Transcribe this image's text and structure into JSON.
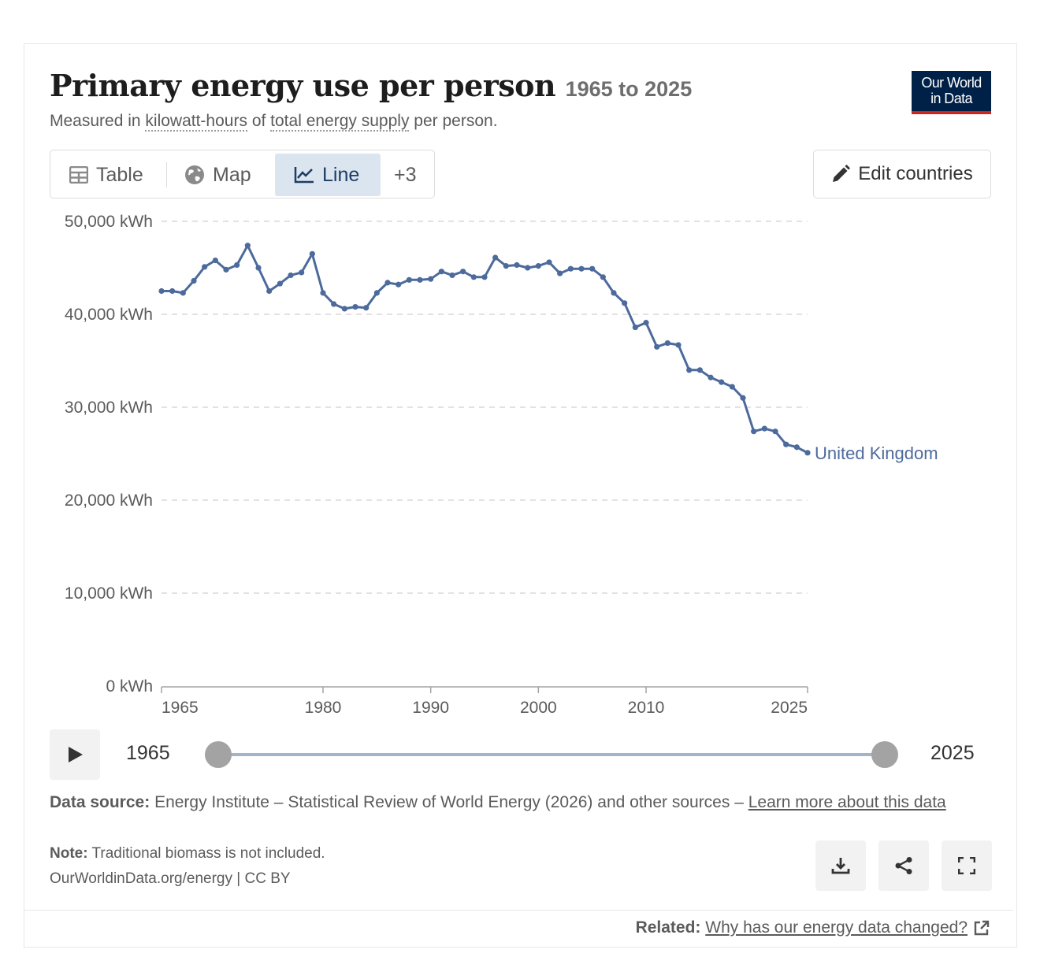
{
  "header": {
    "title": "Primary energy use per person",
    "range": "1965 to 2025",
    "subtitle_prefix": "Measured in",
    "subtitle_unit": "kilowatt-hours",
    "subtitle_of": "of",
    "subtitle_measure": "total energy supply",
    "subtitle_suffix": "per person.",
    "logo_line1": "Our World",
    "logo_line2": "in Data"
  },
  "tabs": [
    {
      "label": "Table",
      "icon": "table-icon"
    },
    {
      "label": "Map",
      "icon": "globe-icon"
    },
    {
      "label": "Line",
      "icon": "line-chart-icon",
      "active": true
    },
    {
      "label": "+3"
    }
  ],
  "edit_button": {
    "label": "Edit countries",
    "icon": "pencil-icon"
  },
  "chart_data": {
    "type": "line",
    "ylim": [
      0,
      50000
    ],
    "xlim": [
      1965,
      2025
    ],
    "y_ticks": [
      0,
      10000,
      20000,
      30000,
      40000,
      50000
    ],
    "y_tick_labels": [
      "0 kWh",
      "10,000 kWh",
      "20,000 kWh",
      "30,000 kWh",
      "40,000 kWh",
      "50,000 kWh"
    ],
    "x_ticks": [
      1965,
      1980,
      1990,
      2000,
      2010,
      2025
    ],
    "x_tick_labels": [
      "1965",
      "1980",
      "1990",
      "2000",
      "2010",
      "2025"
    ],
    "grid": "horizontal-dashed",
    "series": [
      {
        "name": "United Kingdom",
        "color": "#4c6a9c",
        "x": [
          1965,
          1966,
          1967,
          1968,
          1969,
          1970,
          1971,
          1972,
          1973,
          1974,
          1975,
          1976,
          1977,
          1978,
          1979,
          1980,
          1981,
          1982,
          1983,
          1984,
          1985,
          1986,
          1987,
          1988,
          1989,
          1990,
          1991,
          1992,
          1993,
          1994,
          1995,
          1996,
          1997,
          1998,
          1999,
          2000,
          2001,
          2002,
          2003,
          2004,
          2005,
          2006,
          2007,
          2008,
          2009,
          2010,
          2011,
          2012,
          2013,
          2014,
          2015,
          2016,
          2017,
          2018,
          2019,
          2020,
          2021,
          2022,
          2023,
          2024,
          2025
        ],
        "y": [
          42500,
          42500,
          42300,
          43600,
          45100,
          45800,
          44800,
          45300,
          47400,
          45000,
          42500,
          43300,
          44200,
          44500,
          46500,
          42300,
          41100,
          40600,
          40800,
          40700,
          42300,
          43400,
          43200,
          43700,
          43700,
          43800,
          44600,
          44200,
          44600,
          44000,
          44000,
          46100,
          45200,
          45300,
          45000,
          45200,
          45600,
          44400,
          44900,
          44900,
          44900,
          44000,
          42300,
          41200,
          38600,
          39100,
          36500,
          36900,
          36700,
          34000,
          34000,
          33200,
          32700,
          32200,
          31000,
          27400,
          27700,
          27400,
          26000,
          25700,
          25100
        ]
      }
    ]
  },
  "timeline": {
    "start": "1965",
    "end": "2025"
  },
  "footer": {
    "source_label": "Data source:",
    "source_text": "Energy Institute – Statistical Review of World Energy (2026) and other sources –",
    "source_link": "Learn more about this data",
    "note_label": "Note:",
    "note_text": "Traditional biomass is not included.",
    "license": "OurWorldinData.org/energy | CC BY",
    "related_label": "Related:",
    "related_link": "Why has our energy data changed?"
  },
  "colors": {
    "line": "#4c6a9c",
    "accent_bg": "#dbe5f0",
    "logo_bg": "#002147",
    "logo_red": "#ce261e"
  }
}
